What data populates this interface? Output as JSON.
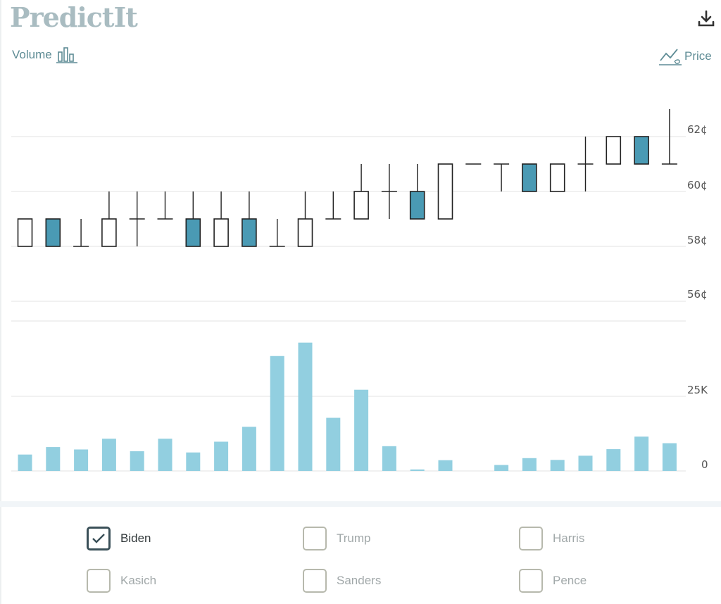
{
  "header": {
    "logo_text": "PredictIt",
    "volume_label": "Volume",
    "price_label": "Price",
    "download_icon": "download-icon",
    "volume_icon": "bar-chart-icon",
    "price_icon": "line-chart-icon"
  },
  "chart_data": [
    {
      "type": "candlestick",
      "y_axis_ticks": [
        "56¢",
        "58¢",
        "60¢",
        "62¢"
      ],
      "ylim": [
        55.5,
        63
      ],
      "grid": true,
      "up_color": "#ffffff",
      "down_color": "#4a9ab4",
      "candles": [
        {
          "open": 58,
          "high": 59,
          "low": 58,
          "close": 59
        },
        {
          "open": 59,
          "high": 59,
          "low": 58,
          "close": 58
        },
        {
          "open": 58,
          "high": 59,
          "low": 58,
          "close": 58
        },
        {
          "open": 58,
          "high": 60,
          "low": 58,
          "close": 59
        },
        {
          "open": 59,
          "high": 60,
          "low": 58,
          "close": 59
        },
        {
          "open": 59,
          "high": 60,
          "low": 59,
          "close": 59
        },
        {
          "open": 59,
          "high": 60,
          "low": 58,
          "close": 58
        },
        {
          "open": 58,
          "high": 60,
          "low": 58,
          "close": 59
        },
        {
          "open": 59,
          "high": 60,
          "low": 58,
          "close": 58
        },
        {
          "open": 58,
          "high": 59,
          "low": 58,
          "close": 58
        },
        {
          "open": 58,
          "high": 60,
          "low": 58,
          "close": 59
        },
        {
          "open": 59,
          "high": 60,
          "low": 59,
          "close": 59
        },
        {
          "open": 59,
          "high": 61,
          "low": 59,
          "close": 60
        },
        {
          "open": 60,
          "high": 61,
          "low": 59,
          "close": 60
        },
        {
          "open": 60,
          "high": 61,
          "low": 59,
          "close": 59
        },
        {
          "open": 59,
          "high": 61,
          "low": 59,
          "close": 61
        },
        {
          "open": 61,
          "high": 61,
          "low": 61,
          "close": 61
        },
        {
          "open": 61,
          "high": 61,
          "low": 60,
          "close": 61
        },
        {
          "open": 61,
          "high": 61,
          "low": 60,
          "close": 60
        },
        {
          "open": 60,
          "high": 61,
          "low": 60,
          "close": 61
        },
        {
          "open": 61,
          "high": 62,
          "low": 60,
          "close": 61
        },
        {
          "open": 61,
          "high": 62,
          "low": 61,
          "close": 62
        },
        {
          "open": 62,
          "high": 62,
          "low": 61,
          "close": 61
        },
        {
          "open": 61,
          "high": 63,
          "low": 61,
          "close": 61
        }
      ]
    },
    {
      "type": "bar",
      "y_axis_ticks": [
        "0",
        "25K"
      ],
      "ylim": [
        0,
        47000
      ],
      "grid": true,
      "color": "#92cfe0",
      "values": [
        5500,
        8000,
        7200,
        10800,
        6600,
        10800,
        6200,
        9800,
        14800,
        38500,
        43000,
        17800,
        27200,
        8300,
        500,
        3600,
        0,
        2000,
        4300,
        3700,
        5100,
        7300,
        11500,
        9300
      ]
    }
  ],
  "axis_labels": {
    "p56": "56¢",
    "p58": "58¢",
    "p60": "60¢",
    "p62": "62¢",
    "v0": "0",
    "v25k": "25K"
  },
  "candidates": [
    {
      "name": "Biden",
      "checked": true
    },
    {
      "name": "Trump",
      "checked": false
    },
    {
      "name": "Harris",
      "checked": false
    },
    {
      "name": "Kasich",
      "checked": false
    },
    {
      "name": "Sanders",
      "checked": false
    },
    {
      "name": "Pence",
      "checked": false
    }
  ],
  "check_icon": "checkmark-icon"
}
